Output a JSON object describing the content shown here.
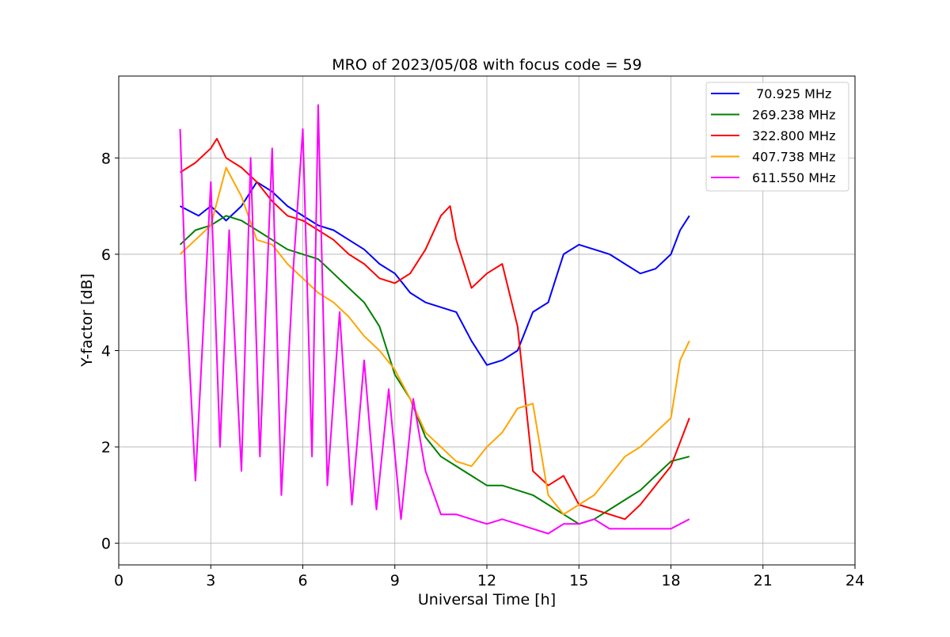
{
  "chart_data": {
    "type": "line",
    "title": "MRO of 2023/05/08 with focus code = 59",
    "xlabel": "Universal Time [h]",
    "ylabel": "Y-factor [dB]",
    "xlim": [
      0,
      24
    ],
    "ylim": [
      -0.45,
      9.7
    ],
    "x_ticks": [
      0,
      3,
      6,
      9,
      12,
      15,
      18,
      21,
      24
    ],
    "y_ticks": [
      0,
      2,
      4,
      6,
      8
    ],
    "grid": true,
    "legend_position": "top-right",
    "series": [
      {
        "name": " 70.925 MHz",
        "color": "#0000ff",
        "x": [
          2.0,
          2.3,
          2.6,
          3.0,
          3.5,
          4.0,
          4.5,
          5.0,
          5.5,
          6.0,
          6.5,
          7.0,
          7.5,
          8.0,
          8.5,
          9.0,
          9.5,
          10.0,
          10.5,
          11.0,
          11.5,
          12.0,
          12.5,
          13.0,
          13.5,
          14.0,
          14.3,
          14.5,
          15.0,
          15.5,
          16.0,
          16.5,
          17.0,
          17.5,
          18.0,
          18.3,
          18.6
        ],
        "y": [
          7.0,
          6.9,
          6.8,
          7.0,
          6.7,
          7.0,
          7.5,
          7.3,
          7.0,
          6.8,
          6.6,
          6.5,
          6.3,
          6.1,
          5.8,
          5.6,
          5.2,
          5.0,
          4.9,
          4.8,
          4.2,
          3.7,
          3.8,
          4.0,
          4.8,
          5.0,
          5.6,
          6.0,
          6.2,
          6.1,
          6.0,
          5.8,
          5.6,
          5.7,
          6.0,
          6.5,
          6.8
        ]
      },
      {
        "name": "269.238 MHz",
        "color": "#008000",
        "x": [
          2.0,
          2.5,
          3.0,
          3.5,
          4.0,
          4.5,
          5.0,
          5.5,
          6.0,
          6.5,
          7.0,
          7.5,
          8.0,
          8.5,
          9.0,
          9.5,
          10.0,
          10.5,
          11.0,
          11.5,
          12.0,
          12.5,
          13.0,
          13.5,
          14.0,
          14.5,
          15.0,
          15.5,
          16.0,
          16.5,
          17.0,
          17.5,
          18.0,
          18.6
        ],
        "y": [
          6.2,
          6.5,
          6.6,
          6.8,
          6.7,
          6.5,
          6.3,
          6.1,
          6.0,
          5.9,
          5.6,
          5.3,
          5.0,
          4.5,
          3.5,
          3.0,
          2.2,
          1.8,
          1.6,
          1.4,
          1.2,
          1.2,
          1.1,
          1.0,
          0.8,
          0.6,
          0.4,
          0.5,
          0.7,
          0.9,
          1.1,
          1.4,
          1.7,
          1.8
        ]
      },
      {
        "name": "322.800 MHz",
        "color": "#ff0000",
        "x": [
          2.0,
          2.5,
          3.0,
          3.2,
          3.5,
          4.0,
          4.5,
          5.0,
          5.5,
          6.0,
          6.5,
          7.0,
          7.5,
          8.0,
          8.5,
          9.0,
          9.5,
          10.0,
          10.5,
          10.8,
          11.0,
          11.5,
          12.0,
          12.5,
          13.0,
          13.5,
          14.0,
          14.5,
          15.0,
          15.5,
          16.0,
          16.5,
          17.0,
          17.5,
          18.0,
          18.6
        ],
        "y": [
          7.7,
          7.9,
          8.2,
          8.4,
          8.0,
          7.8,
          7.5,
          7.1,
          6.8,
          6.7,
          6.5,
          6.3,
          6.0,
          5.8,
          5.5,
          5.4,
          5.6,
          6.1,
          6.8,
          7.0,
          6.3,
          5.3,
          5.6,
          5.8,
          4.5,
          1.5,
          1.2,
          1.4,
          0.8,
          0.7,
          0.6,
          0.5,
          0.8,
          1.2,
          1.6,
          2.6
        ]
      },
      {
        "name": "407.738 MHz",
        "color": "#ffa500",
        "x": [
          2.0,
          2.5,
          3.0,
          3.5,
          4.0,
          4.5,
          5.0,
          5.5,
          6.0,
          6.5,
          7.0,
          7.5,
          8.0,
          8.5,
          9.0,
          9.5,
          10.0,
          10.5,
          11.0,
          11.5,
          12.0,
          12.5,
          13.0,
          13.5,
          14.0,
          14.5,
          15.0,
          15.5,
          16.0,
          16.5,
          17.0,
          17.5,
          18.0,
          18.3,
          18.6
        ],
        "y": [
          6.0,
          6.3,
          6.6,
          7.8,
          7.2,
          6.3,
          6.2,
          5.8,
          5.5,
          5.2,
          5.0,
          4.7,
          4.3,
          4.0,
          3.6,
          3.0,
          2.3,
          2.0,
          1.7,
          1.6,
          2.0,
          2.3,
          2.8,
          2.9,
          1.0,
          0.6,
          0.8,
          1.0,
          1.4,
          1.8,
          2.0,
          2.3,
          2.6,
          3.8,
          4.2
        ]
      },
      {
        "name": "611.550 MHz",
        "color": "#ff00ff",
        "x": [
          2.0,
          2.2,
          2.5,
          3.0,
          3.3,
          3.6,
          4.0,
          4.3,
          4.6,
          5.0,
          5.3,
          5.7,
          6.0,
          6.3,
          6.5,
          6.8,
          7.2,
          7.6,
          8.0,
          8.4,
          8.8,
          9.2,
          9.6,
          10.0,
          10.5,
          11.0,
          11.5,
          12.0,
          12.5,
          13.0,
          13.5,
          14.0,
          14.5,
          15.0,
          15.5,
          16.0,
          16.5,
          17.0,
          17.5,
          18.0,
          18.6
        ],
        "y": [
          8.6,
          5.0,
          1.3,
          7.5,
          2.0,
          6.5,
          1.5,
          8.0,
          1.8,
          8.2,
          1.0,
          5.8,
          8.6,
          1.8,
          9.1,
          1.2,
          4.8,
          0.8,
          3.8,
          0.7,
          3.2,
          0.5,
          3.0,
          1.5,
          0.6,
          0.6,
          0.5,
          0.4,
          0.5,
          0.4,
          0.3,
          0.2,
          0.4,
          0.4,
          0.5,
          0.3,
          0.3,
          0.3,
          0.3,
          0.3,
          0.5
        ]
      }
    ]
  }
}
